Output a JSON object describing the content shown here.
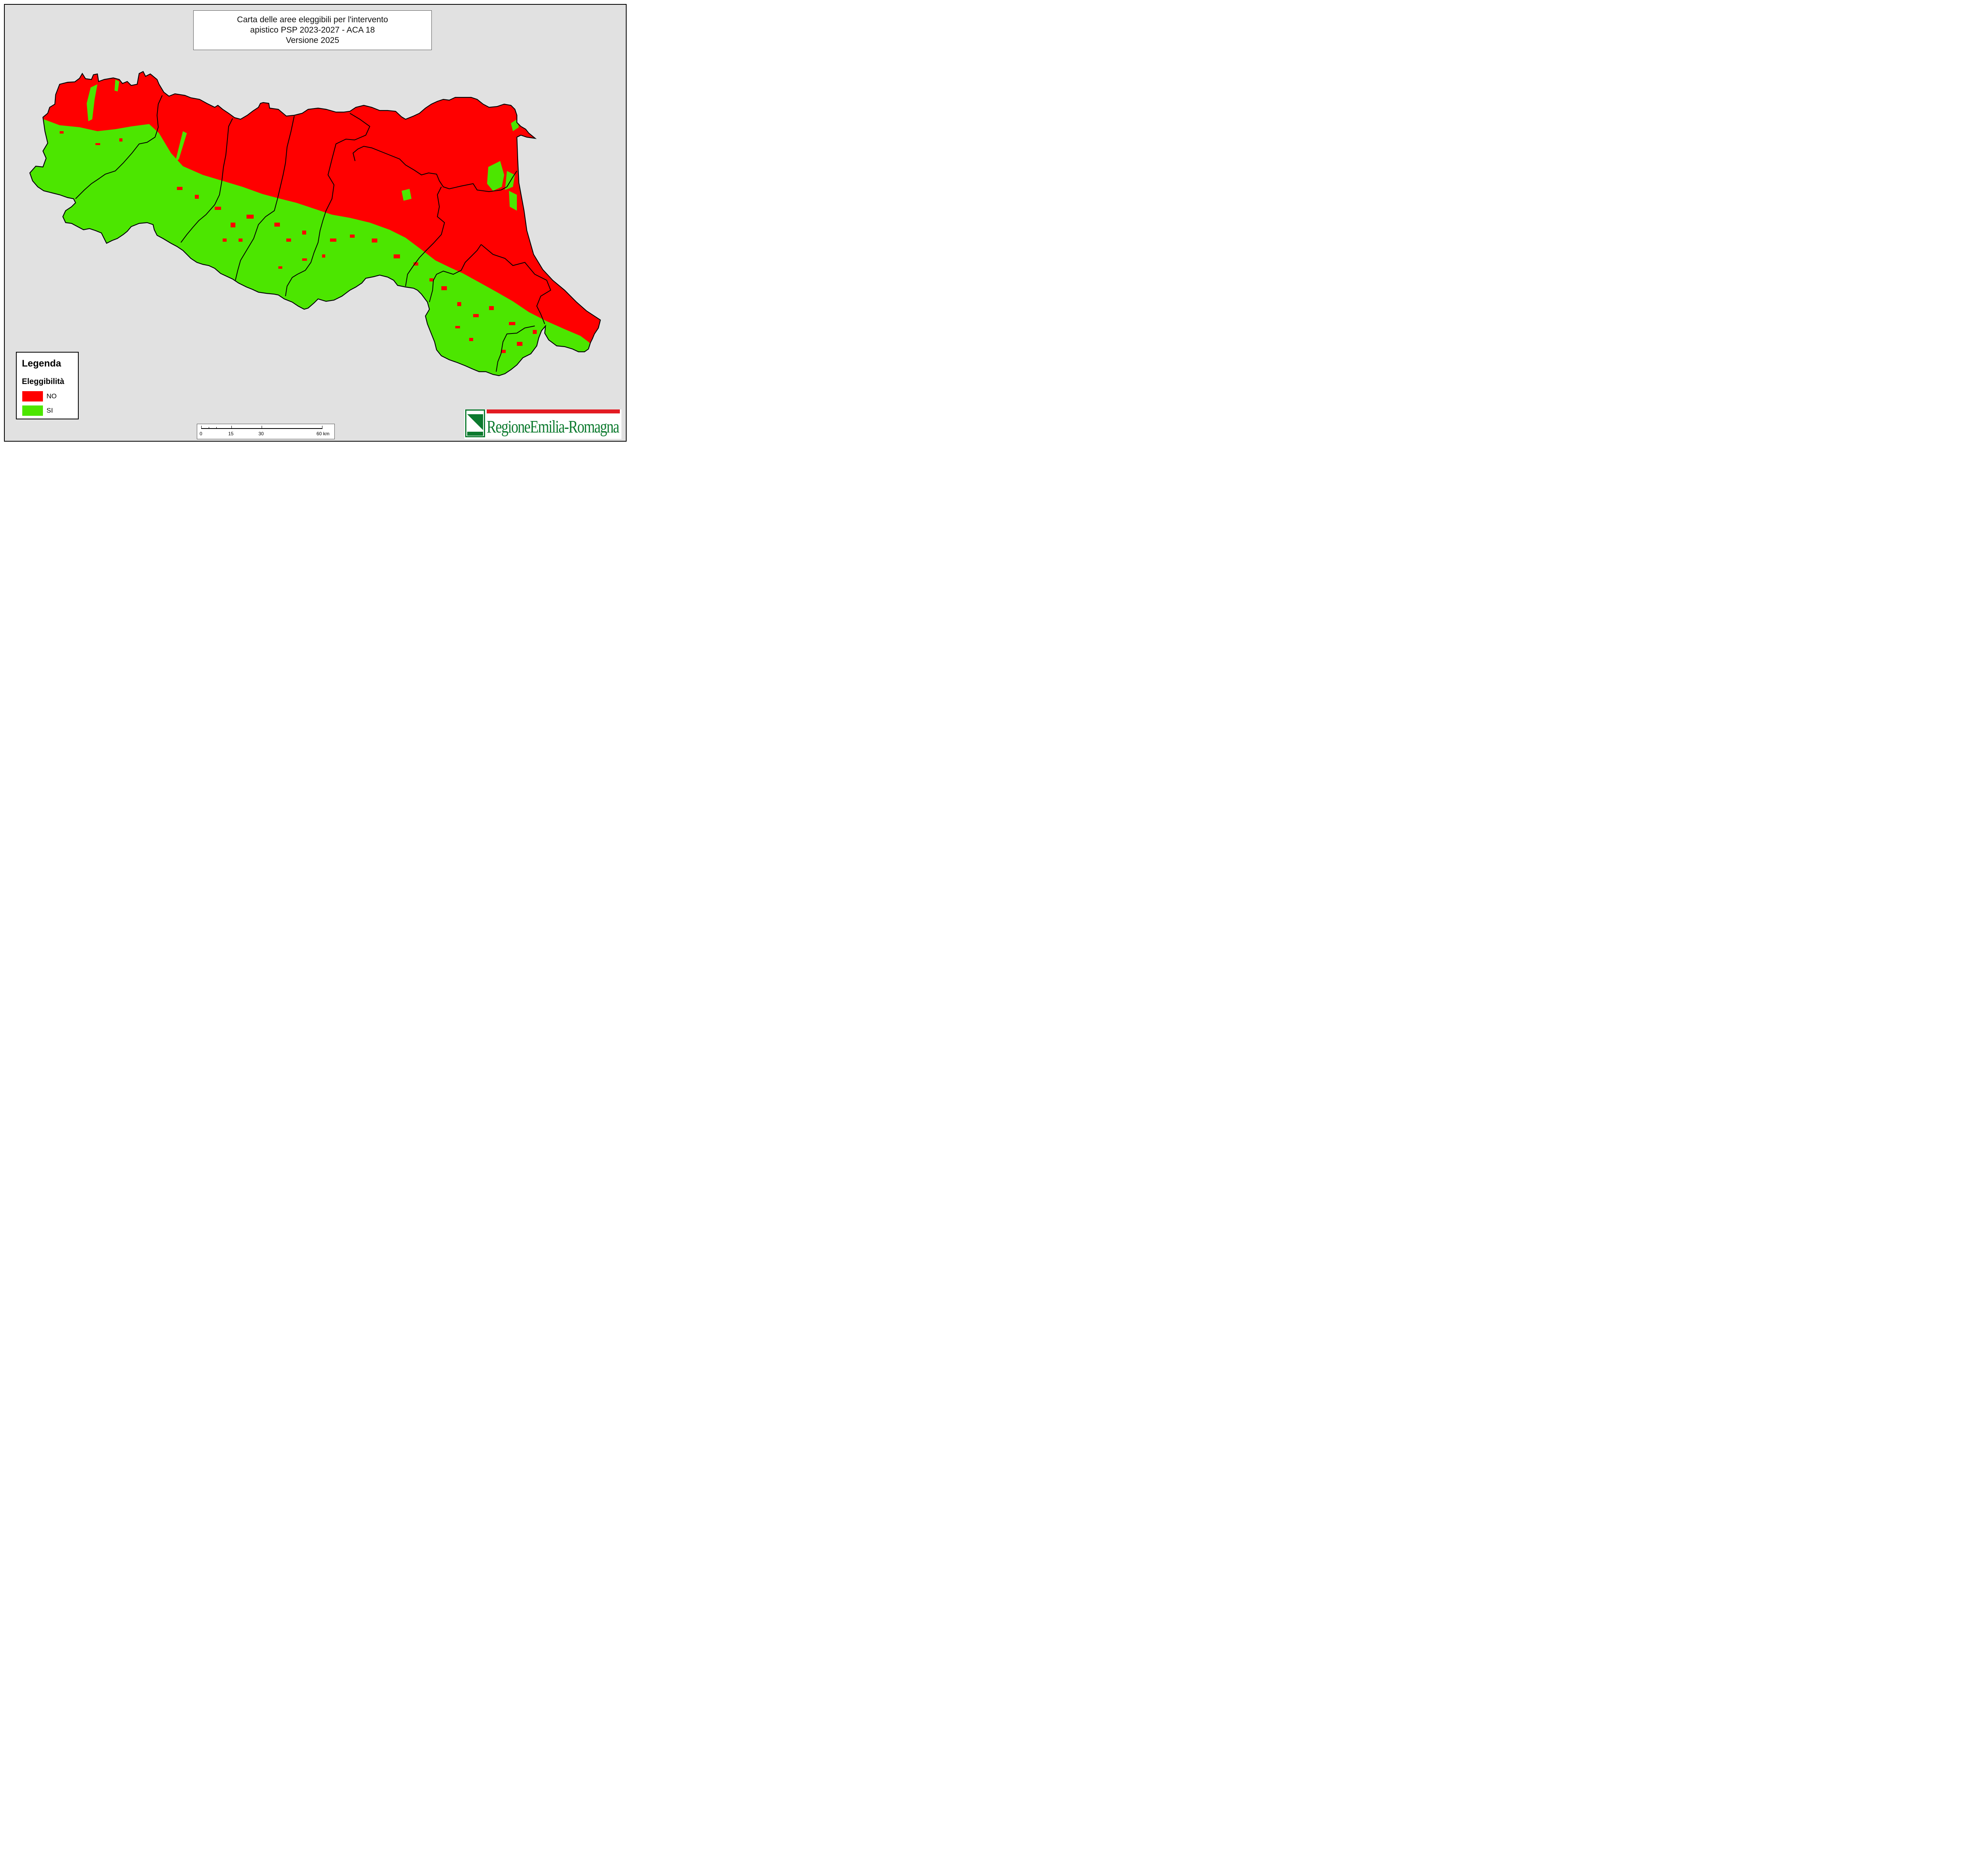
{
  "title": {
    "line1": "Carta delle aree eleggibili per l'intervento",
    "line2": "apistico PSP 2023-2027 - ACA 18",
    "line3": "Versione 2025"
  },
  "legend": {
    "title": "Legenda",
    "subtitle": "Eleggibilità",
    "items": [
      {
        "label": "NO",
        "color": "#ff0000"
      },
      {
        "label": "SI",
        "color": "#4ce600"
      }
    ]
  },
  "scalebar": {
    "labels": [
      "0",
      "15",
      "30",
      "60 km"
    ]
  },
  "logo": {
    "text": "RegioneEmilia-Romagna"
  },
  "colors": {
    "background": "#e1e1e1",
    "eligible_no": "#ff0000",
    "eligible_si": "#4ce600",
    "border": "#000000"
  }
}
